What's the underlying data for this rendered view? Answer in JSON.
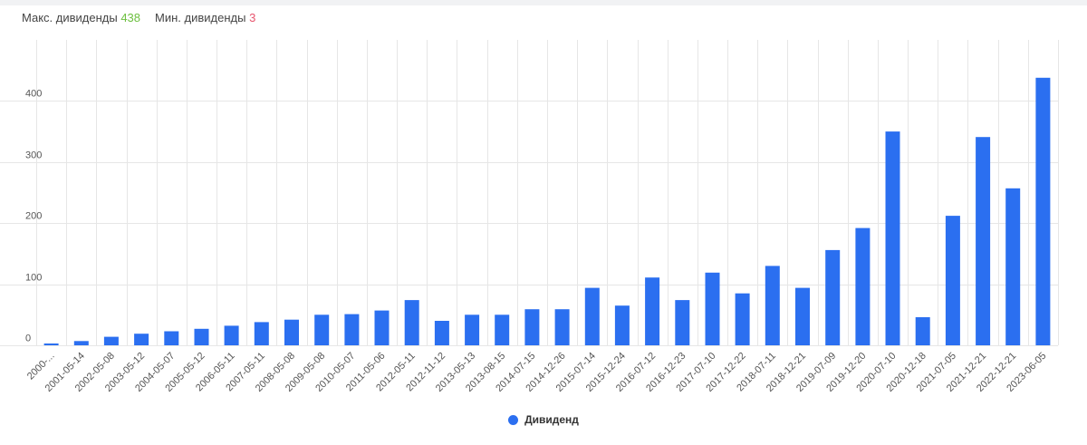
{
  "stats": {
    "max_label": "Макс. дивиденды",
    "max_value": "438",
    "min_label": "Мин. дивиденды",
    "min_value": "3"
  },
  "colors": {
    "bar": "#2b6ff0",
    "grid": "#e6e6e6",
    "tick": "#555555",
    "max": "#6cbf3f",
    "min": "#e8556e"
  },
  "chart_data": {
    "type": "bar",
    "categories": [
      "2000-...",
      "2001-05-14",
      "2002-05-08",
      "2003-05-12",
      "2004-05-07",
      "2005-05-12",
      "2006-05-11",
      "2007-05-11",
      "2008-05-08",
      "2009-05-08",
      "2010-05-07",
      "2011-05-06",
      "2012-05-11",
      "2012-11-12",
      "2013-05-13",
      "2013-08-15",
      "2014-07-15",
      "2014-12-26",
      "2015-07-14",
      "2015-12-24",
      "2016-07-12",
      "2016-12-23",
      "2017-07-10",
      "2017-12-22",
      "2018-07-11",
      "2018-12-21",
      "2019-07-09",
      "2019-12-20",
      "2020-07-10",
      "2020-12-18",
      "2021-07-05",
      "2021-12-21",
      "2022-12-21",
      "2023-06-05"
    ],
    "series": [
      {
        "name": "Дивиденд",
        "values": [
          3,
          7,
          14,
          19,
          23,
          27,
          32,
          38,
          42,
          50,
          51,
          57,
          74,
          40,
          50,
          50,
          59,
          59,
          94,
          65,
          111,
          74,
          119,
          85,
          130,
          94,
          156,
          192,
          350,
          46,
          212,
          341,
          257,
          438
        ]
      }
    ],
    "yticks": [
      0,
      100,
      200,
      300,
      400
    ],
    "ylim": [
      0,
      500
    ],
    "grid": true,
    "legend_position": "bottom-center",
    "title": "",
    "xlabel": "",
    "ylabel": ""
  }
}
